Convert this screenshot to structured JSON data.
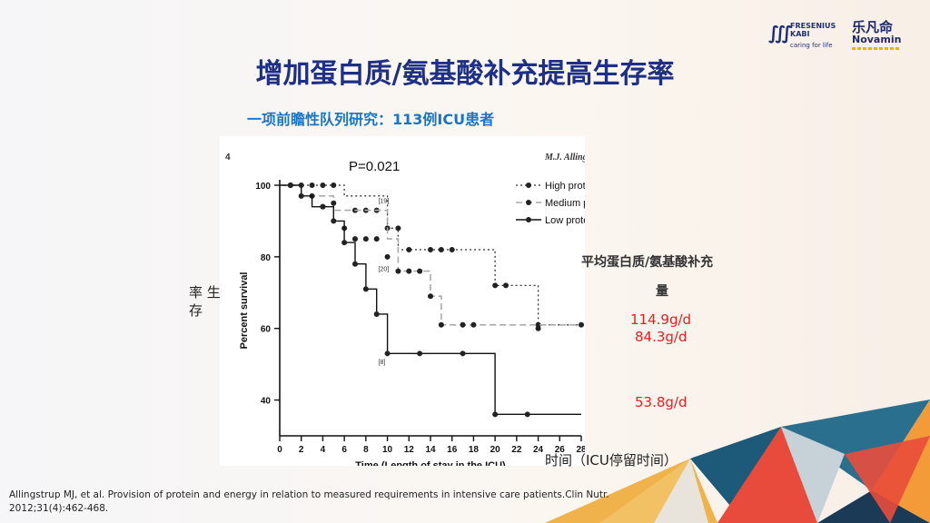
{
  "brand": {
    "fresenius_name": "FRESENIUS KABI",
    "fresenius_tagline": "caring for life",
    "novamin_cn": "乐凡命",
    "novamin_en": "Novamin"
  },
  "title": "增加蛋白质/氨基酸补充提高生存率",
  "subtitle": "一项前瞻性队列研究：113例ICU患者",
  "left_label": "率 生 存",
  "amount_header": "平均蛋白质/氨基酸补充",
  "amount_unit": "量",
  "amounts": [
    "114.9g/d",
    "84.3g/d",
    "53.8g/d"
  ],
  "time_label": "时间（ICU停留时间）",
  "citation": "Allingstrup MJ, et al. Provision of protein and energy in relation to measured requirements in intensive care patients.Clin Nutr. 2012;31(4):462-468.",
  "chart_data": {
    "type": "line",
    "panel_label": "4",
    "author": "M.J. Allingstrup et al. /",
    "p_value": "P=0.021",
    "xlabel": "Time (Length of stay in the ICU)",
    "ylabel": "Percent survival",
    "xlim": [
      0,
      28
    ],
    "ylim": [
      30,
      100
    ],
    "x_ticks": [
      0,
      2,
      4,
      6,
      8,
      10,
      12,
      14,
      16,
      18,
      20,
      22,
      24,
      26,
      28
    ],
    "y_ticks": [
      40,
      60,
      80,
      100
    ],
    "series": [
      {
        "name": "High protein & AA",
        "style": "dotted",
        "steps": [
          [
            0,
            100
          ],
          [
            6,
            100
          ],
          [
            6,
            97
          ],
          [
            10,
            97
          ],
          [
            10,
            88
          ],
          [
            11,
            88
          ],
          [
            11,
            82
          ],
          [
            20,
            82
          ],
          [
            20,
            72
          ],
          [
            24,
            72
          ],
          [
            24,
            61
          ],
          [
            28,
            61
          ]
        ],
        "markers": [
          [
            1,
            100
          ],
          [
            2,
            100
          ],
          [
            3,
            100
          ],
          [
            4,
            100
          ],
          [
            5,
            100
          ],
          [
            7,
            93
          ],
          [
            8,
            93
          ],
          [
            9,
            93
          ],
          [
            10,
            88
          ],
          [
            11,
            88
          ],
          [
            12,
            82
          ],
          [
            14,
            82
          ],
          [
            15,
            82
          ],
          [
            16,
            82
          ],
          [
            20,
            72
          ],
          [
            21,
            72
          ],
          [
            24,
            61
          ]
        ],
        "annotation": {
          "text": "[19]",
          "x": 10,
          "y": 95
        }
      },
      {
        "name": "Medium protein & AA",
        "style": "dashed",
        "steps": [
          [
            0,
            100
          ],
          [
            2,
            100
          ],
          [
            2,
            97
          ],
          [
            5,
            97
          ],
          [
            5,
            93
          ],
          [
            10,
            93
          ],
          [
            10,
            85
          ],
          [
            11,
            85
          ],
          [
            11,
            76
          ],
          [
            14,
            76
          ],
          [
            14,
            69
          ],
          [
            15,
            69
          ],
          [
            15,
            61
          ],
          [
            28,
            61
          ]
        ],
        "markers": [
          [
            1,
            100
          ],
          [
            3,
            97
          ],
          [
            4,
            94
          ],
          [
            5,
            95
          ],
          [
            6,
            88
          ],
          [
            7,
            85
          ],
          [
            8,
            85
          ],
          [
            9,
            85
          ],
          [
            10,
            80
          ],
          [
            11,
            76
          ],
          [
            12,
            76
          ],
          [
            13,
            76
          ],
          [
            14,
            69
          ],
          [
            15,
            61
          ],
          [
            17,
            61
          ],
          [
            18,
            61
          ],
          [
            24,
            60
          ],
          [
            28,
            61
          ]
        ],
        "annotation": {
          "text": "[20]",
          "x": 10,
          "y": 76
        }
      },
      {
        "name": "Low protein & AA",
        "style": "solid",
        "steps": [
          [
            0,
            100
          ],
          [
            2,
            100
          ],
          [
            2,
            97
          ],
          [
            3,
            97
          ],
          [
            3,
            94
          ],
          [
            5,
            94
          ],
          [
            5,
            90
          ],
          [
            6,
            90
          ],
          [
            6,
            84
          ],
          [
            7,
            84
          ],
          [
            7,
            78
          ],
          [
            8,
            78
          ],
          [
            8,
            71
          ],
          [
            9,
            71
          ],
          [
            9,
            64
          ],
          [
            10,
            64
          ],
          [
            10,
            53
          ],
          [
            20,
            53
          ],
          [
            20,
            36
          ],
          [
            28,
            36
          ]
        ],
        "markers": [
          [
            1,
            100
          ],
          [
            2,
            97
          ],
          [
            4,
            94
          ],
          [
            5,
            90
          ],
          [
            6,
            84
          ],
          [
            7,
            78
          ],
          [
            8,
            71
          ],
          [
            9,
            64
          ],
          [
            10,
            53
          ],
          [
            13,
            53
          ],
          [
            17,
            53
          ],
          [
            20,
            36
          ],
          [
            23,
            36
          ]
        ],
        "annotation": {
          "text": "[8]",
          "x": 10,
          "y": 50
        }
      }
    ]
  },
  "colors": {
    "title": "#1e2f86",
    "subtitle": "#1976c6",
    "highlight": "#e52020"
  }
}
